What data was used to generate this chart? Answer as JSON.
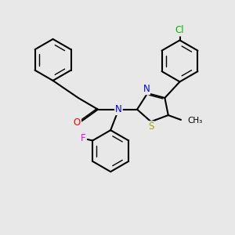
{
  "background_color": "#e8e8e8",
  "line_color": "#000000",
  "bond_lw": 1.5,
  "inner_lw": 1.0,
  "atoms": {
    "Cl": {
      "color": "#00bb00",
      "fontsize": 8.5
    },
    "S": {
      "color": "#aaaa00",
      "fontsize": 8.5
    },
    "N": {
      "color": "#0000ff",
      "fontsize": 8.5
    },
    "O": {
      "color": "#ff0000",
      "fontsize": 8.5
    },
    "F": {
      "color": "#ff00ff",
      "fontsize": 8.5
    },
    "Me": {
      "color": "#000000",
      "fontsize": 7.5
    }
  },
  "xlim": [
    0,
    10
  ],
  "ylim": [
    0,
    10
  ]
}
